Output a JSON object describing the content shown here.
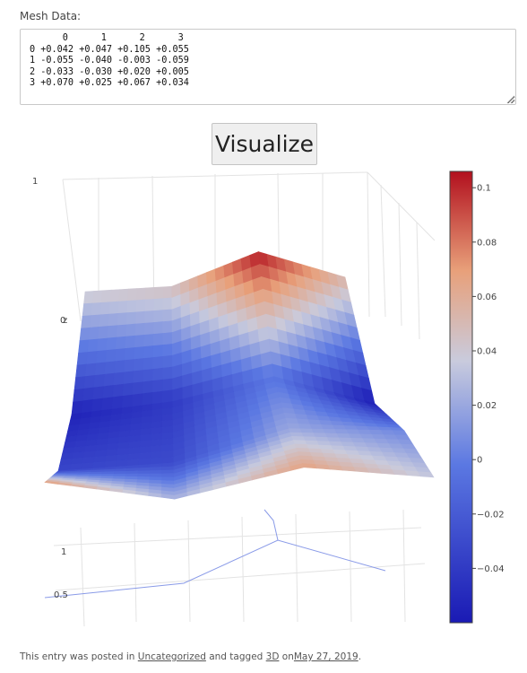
{
  "mesh": {
    "label": "Mesh Data:",
    "text": "      0      1      2      3\n0 +0.042 +0.047 +0.105 +0.055\n1 -0.055 -0.040 -0.003 -0.059\n2 -0.033 -0.030 +0.020 +0.005\n3 +0.070 +0.025 +0.067 +0.034"
  },
  "visualize_label": "Visualize",
  "chart_data": {
    "type": "surface",
    "z": [
      [
        0.042,
        0.047,
        0.105,
        0.055
      ],
      [
        -0.055,
        -0.04,
        -0.003,
        -0.059
      ],
      [
        -0.033,
        -0.03,
        0.02,
        0.005
      ],
      [
        0.07,
        0.025,
        0.067,
        0.034
      ]
    ],
    "axis_labels": {
      "z": "z"
    },
    "z_ticks": [
      "1",
      "0"
    ],
    "floor_ticks": [
      "1",
      "0.5"
    ],
    "colorscale": "RdBu reversed (blue low, red high)",
    "colorbar": {
      "ticks": [
        "0.1",
        "0.08",
        "0.06",
        "0.04",
        "0.02",
        "0",
        "−0.02",
        "−0.04"
      ]
    },
    "colors": {
      "low": "#1a1ab4",
      "high": "#b2101e"
    },
    "grid": true
  },
  "footer": {
    "prefix": "This entry was posted in",
    "category": "Uncategorized",
    "middle": "and tagged",
    "tag": "3D",
    "on_word": "on",
    "date": "May 27, 2019",
    "suffix": "."
  }
}
